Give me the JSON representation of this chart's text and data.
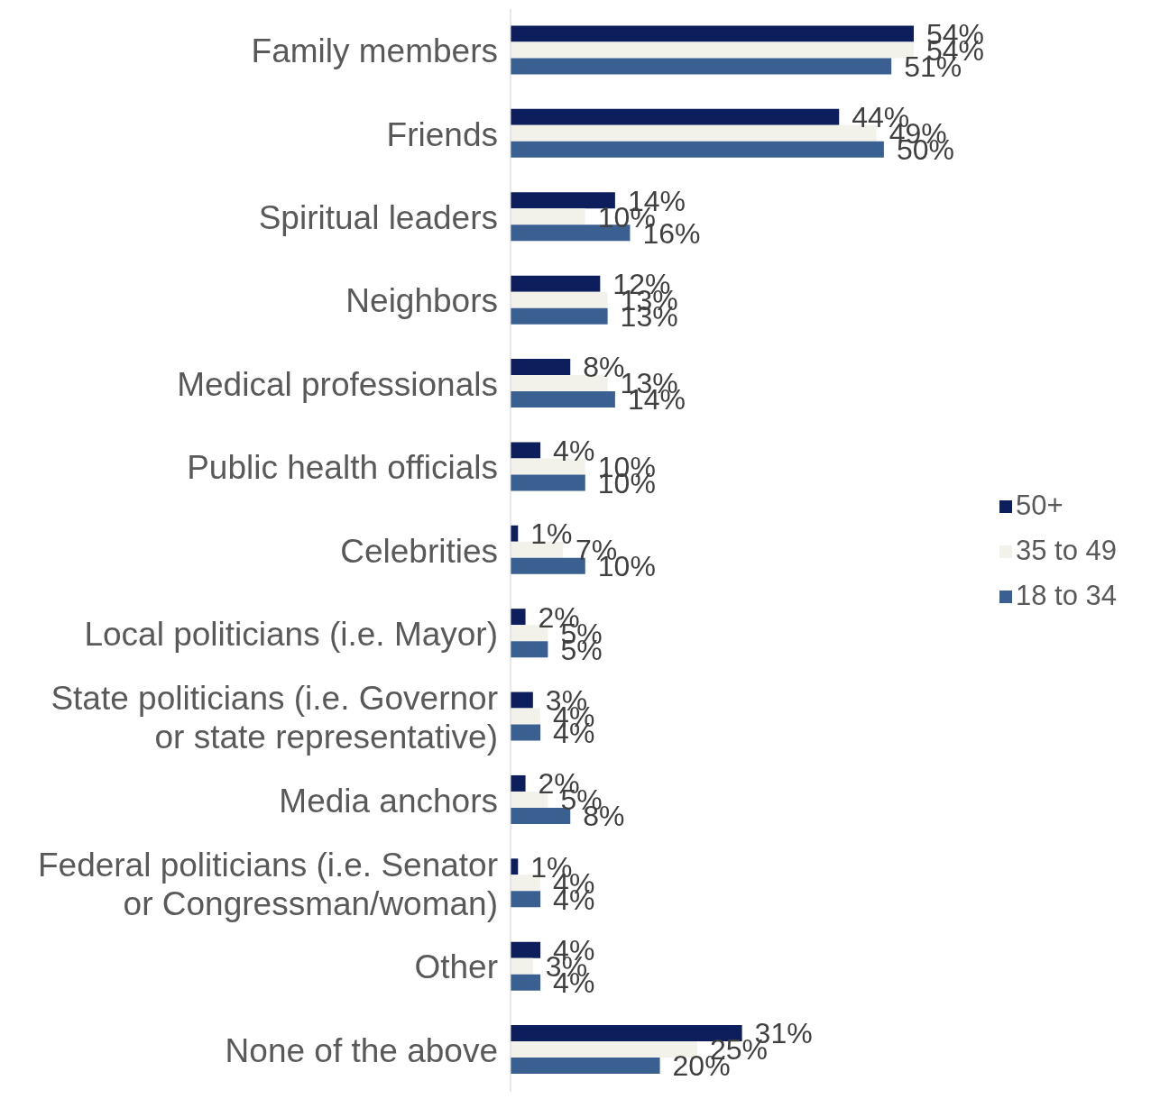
{
  "chart_data": {
    "type": "bar",
    "orientation": "horizontal",
    "legend": "right",
    "categories": [
      "Family members",
      "Friends",
      "Spiritual leaders",
      "Neighbors",
      "Medical professionals",
      "Public health officials",
      "Celebrities",
      "Local politicians (i.e. Mayor)",
      "State politicians (i.e. Governor or state representative)",
      "Media anchors",
      "Federal politicians (i.e. Senator or Congressman/woman)",
      "Other",
      "None of the above"
    ],
    "series": [
      {
        "name": "50+",
        "color": "#0c1f5c",
        "values": [
          54,
          44,
          14,
          12,
          8,
          4,
          1,
          2,
          3,
          2,
          1,
          4,
          31
        ],
        "value_labels": [
          "54%",
          "44%",
          "14%",
          "12%",
          "8%",
          "4%",
          "1%",
          "2%",
          "3%",
          "2%",
          "1%",
          "4%",
          "31%"
        ]
      },
      {
        "name": "35 to 49",
        "color": "#f2f2eb",
        "values": [
          54,
          49,
          10,
          13,
          13,
          10,
          7,
          5,
          4,
          5,
          4,
          3,
          25
        ],
        "value_labels": [
          "54%",
          "49%",
          "10%",
          "13%",
          "13%",
          "10%",
          "7%",
          "5%",
          "4%",
          "5%",
          "4%",
          "3%",
          "25%"
        ]
      },
      {
        "name": "18 to 34",
        "color": "#3a6092",
        "values": [
          51,
          50,
          16,
          13,
          14,
          10,
          10,
          5,
          4,
          8,
          4,
          4,
          20
        ],
        "value_labels": [
          "51%",
          "50%",
          "16%",
          "13%",
          "14%",
          "10%",
          "10%",
          "5%",
          "4%",
          "8%",
          "4%",
          "4%",
          "20%"
        ]
      }
    ]
  }
}
